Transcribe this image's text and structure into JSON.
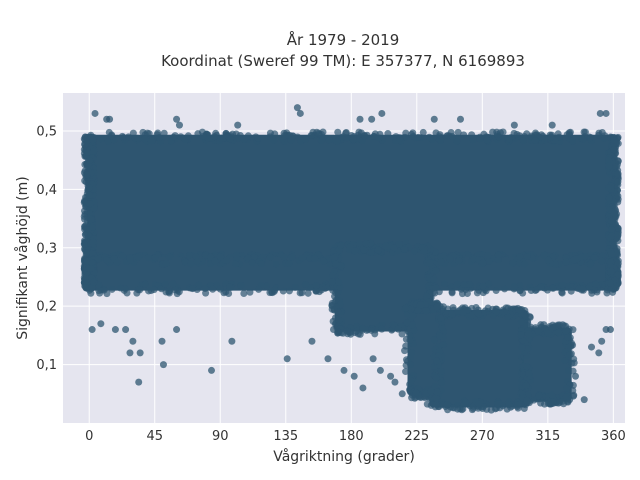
{
  "chart_data": {
    "type": "scatter",
    "title_lines": [
      "År 1979 - 2019",
      "Koordinat (Sweref 99 TM): E 357377, N 6169893"
    ],
    "xlabel": "Vågriktning (grader)",
    "ylabel": "Signifikant våghöjd (m)",
    "xlim": [
      -18,
      368
    ],
    "ylim": [
      0.0,
      0.565
    ],
    "xticks": [
      0,
      45,
      90,
      135,
      180,
      225,
      270,
      315,
      360
    ],
    "xtick_labels": [
      "0",
      "45",
      "90",
      "135",
      "180",
      "225",
      "270",
      "315",
      "360"
    ],
    "yticks": [
      0.1,
      0.2,
      0.3,
      0.4,
      0.5
    ],
    "ytick_labels": [
      "0,1",
      "0,2",
      "0,3",
      "0,4",
      "0,5"
    ],
    "grid": true,
    "plot_background": "#e5e5ef",
    "marker_color": "#2e5570",
    "dense_regions": [
      {
        "x": [
          0,
          360
        ],
        "y": [
          0.28,
          0.49
        ]
      },
      {
        "x": [
          0,
          360
        ],
        "y": [
          0.23,
          0.28
        ]
      },
      {
        "x": [
          170,
          235
        ],
        "y": [
          0.16,
          0.3
        ]
      },
      {
        "x": [
          235,
          300
        ],
        "y": [
          0.03,
          0.19
        ]
      },
      {
        "x": [
          220,
          240
        ],
        "y": [
          0.05,
          0.2
        ]
      },
      {
        "x": [
          300,
          330
        ],
        "y": [
          0.04,
          0.16
        ]
      }
    ],
    "points": [
      {
        "x": 4,
        "y": 0.53
      },
      {
        "x": 12,
        "y": 0.52
      },
      {
        "x": 14,
        "y": 0.52
      },
      {
        "x": 60,
        "y": 0.52
      },
      {
        "x": 62,
        "y": 0.51
      },
      {
        "x": 143,
        "y": 0.54
      },
      {
        "x": 145,
        "y": 0.53
      },
      {
        "x": 186,
        "y": 0.52
      },
      {
        "x": 194,
        "y": 0.52
      },
      {
        "x": 201,
        "y": 0.53
      },
      {
        "x": 237,
        "y": 0.52
      },
      {
        "x": 255,
        "y": 0.52
      },
      {
        "x": 351,
        "y": 0.53
      },
      {
        "x": 355,
        "y": 0.53
      },
      {
        "x": 102,
        "y": 0.51
      },
      {
        "x": 292,
        "y": 0.51
      },
      {
        "x": 318,
        "y": 0.51
      },
      {
        "x": 2,
        "y": 0.16
      },
      {
        "x": 8,
        "y": 0.17
      },
      {
        "x": 18,
        "y": 0.16
      },
      {
        "x": 25,
        "y": 0.16
      },
      {
        "x": 28,
        "y": 0.12
      },
      {
        "x": 30,
        "y": 0.14
      },
      {
        "x": 34,
        "y": 0.07
      },
      {
        "x": 35,
        "y": 0.12
      },
      {
        "x": 50,
        "y": 0.14
      },
      {
        "x": 51,
        "y": 0.1
      },
      {
        "x": 60,
        "y": 0.16
      },
      {
        "x": 84,
        "y": 0.09
      },
      {
        "x": 98,
        "y": 0.14
      },
      {
        "x": 136,
        "y": 0.11
      },
      {
        "x": 153,
        "y": 0.14
      },
      {
        "x": 164,
        "y": 0.11
      },
      {
        "x": 175,
        "y": 0.09
      },
      {
        "x": 182,
        "y": 0.08
      },
      {
        "x": 188,
        "y": 0.06
      },
      {
        "x": 195,
        "y": 0.11
      },
      {
        "x": 200,
        "y": 0.09
      },
      {
        "x": 207,
        "y": 0.08
      },
      {
        "x": 210,
        "y": 0.07
      },
      {
        "x": 215,
        "y": 0.05
      },
      {
        "x": 330,
        "y": 0.04
      },
      {
        "x": 340,
        "y": 0.04
      },
      {
        "x": 334,
        "y": 0.08
      },
      {
        "x": 350,
        "y": 0.12
      },
      {
        "x": 355,
        "y": 0.16
      },
      {
        "x": 358,
        "y": 0.16
      },
      {
        "x": 345,
        "y": 0.13
      },
      {
        "x": 352,
        "y": 0.14
      }
    ]
  }
}
